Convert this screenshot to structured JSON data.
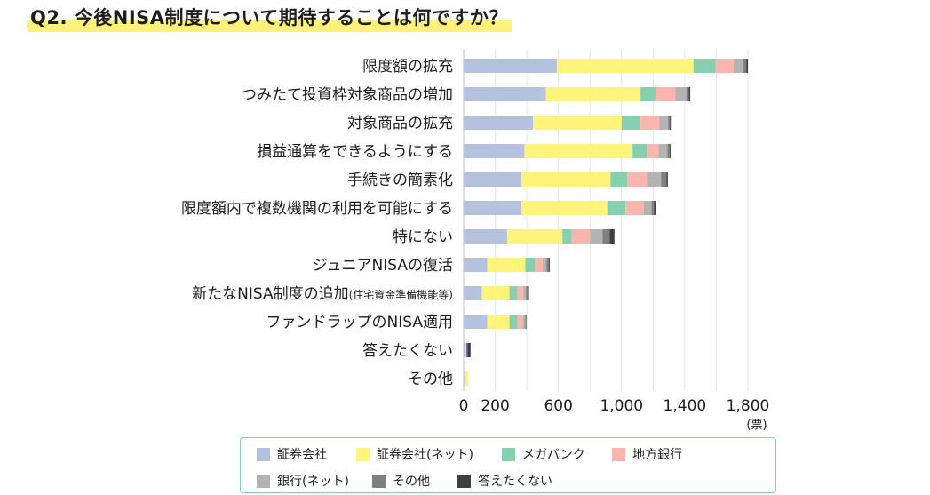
{
  "title": "Q2. 今後NISA制度について期待することは何ですか？",
  "chart_data": {
    "type": "bar",
    "orientation": "horizontal",
    "stacked": true,
    "title": "Q2. 今後NISA制度について期待することは何ですか？",
    "xlabel": "",
    "unit": "(票)",
    "xlim": [
      0,
      1800
    ],
    "xticks": [
      0,
      200,
      600,
      1000,
      1400,
      1800
    ],
    "xtick_labels": [
      "0",
      "200",
      "600",
      "1,000",
      "1,400",
      "1,800"
    ],
    "grid": true,
    "legend_position": "bottom",
    "categories": [
      "限度額の拡充",
      "つみたて投資枠対象商品の増加",
      "対象商品の拡充",
      "損益通算をできるようにする",
      "手続きの簡素化",
      "限度額内で複数機関の利用を可能にする",
      "特にない",
      "ジュニアNISAの復活",
      "新たなNISA制度の追加",
      "ファンドラップのNISA適用",
      "答えたくない",
      "その他"
    ],
    "category_notes": [
      "",
      "",
      "",
      "",
      "",
      "",
      "",
      "",
      "(住宅資金準備機能等)",
      "",
      "",
      ""
    ],
    "series": [
      {
        "name": "証券会社",
        "color": "#b4c2e0",
        "values": [
          590,
          520,
          440,
          385,
          365,
          365,
          275,
          150,
          115,
          150,
          8,
          5
        ]
      },
      {
        "name": "証券会社(ネット)",
        "color": "#fff47a",
        "values": [
          865,
          600,
          560,
          685,
          565,
          545,
          350,
          240,
          175,
          140,
          8,
          25
        ]
      },
      {
        "name": "メガバンク",
        "color": "#86d0b0",
        "values": [
          140,
          95,
          120,
          90,
          105,
          115,
          60,
          60,
          50,
          50,
          0,
          0
        ]
      },
      {
        "name": "地方銀行",
        "color": "#fab5ad",
        "values": [
          115,
          125,
          120,
          75,
          125,
          115,
          115,
          50,
          40,
          35,
          0,
          0
        ]
      },
      {
        "name": "銀行(ネット)",
        "color": "#b3b3b3",
        "values": [
          60,
          70,
          55,
          55,
          90,
          50,
          80,
          25,
          15,
          15,
          0,
          0
        ]
      },
      {
        "name": "その他",
        "color": "#7f7f7f",
        "values": [
          20,
          15,
          12,
          15,
          35,
          15,
          45,
          15,
          10,
          5,
          8,
          0
        ]
      },
      {
        "name": "答えたくない",
        "color": "#404040",
        "values": [
          10,
          10,
          5,
          5,
          8,
          10,
          30,
          5,
          3,
          3,
          20,
          0
        ]
      }
    ]
  }
}
